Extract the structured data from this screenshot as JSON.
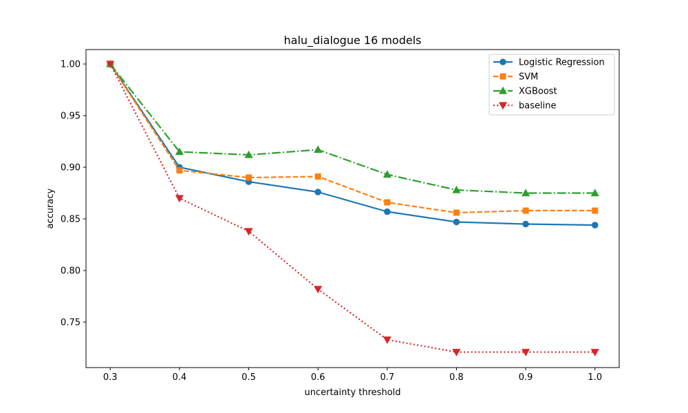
{
  "chart_data": {
    "type": "line",
    "title": "halu_dialogue 16 models",
    "xlabel": "uncertainty threshold",
    "ylabel": "accuracy",
    "x": [
      0.3,
      0.4,
      0.5,
      0.6,
      0.7,
      0.8,
      0.9,
      1.0
    ],
    "x_tick_labels": [
      "0.3",
      "0.4",
      "0.5",
      "0.6",
      "0.7",
      "0.8",
      "0.9",
      "1.0"
    ],
    "y_ticks": [
      0.75,
      0.8,
      0.85,
      0.9,
      0.95,
      1.0
    ],
    "y_tick_labels": [
      "0.75",
      "0.80",
      "0.85",
      "0.90",
      "0.95",
      "1.00"
    ],
    "xlim": [
      0.265,
      1.035
    ],
    "ylim": [
      0.706,
      1.014
    ],
    "grid": false,
    "legend_position": "top-right",
    "series": [
      {
        "name": "Logistic Regression",
        "color": "#1f77b4",
        "line_style": "solid",
        "marker": "circle",
        "values": [
          1.0,
          0.9,
          0.886,
          0.876,
          0.857,
          0.847,
          0.845,
          0.844
        ]
      },
      {
        "name": "SVM",
        "color": "#ff7f0e",
        "line_style": "dashed",
        "marker": "square",
        "values": [
          1.0,
          0.897,
          0.89,
          0.891,
          0.866,
          0.856,
          0.858,
          0.858
        ]
      },
      {
        "name": "XGBoost",
        "color": "#2ca02c",
        "line_style": "dashdot",
        "marker": "triangle-up",
        "values": [
          1.0,
          0.915,
          0.912,
          0.917,
          0.893,
          0.878,
          0.875,
          0.875
        ]
      },
      {
        "name": "baseline",
        "color": "#d62728",
        "line_style": "dotted",
        "marker": "triangle-down",
        "values": [
          1.0,
          0.87,
          0.838,
          0.782,
          0.733,
          0.721,
          0.721,
          0.721
        ]
      }
    ]
  }
}
